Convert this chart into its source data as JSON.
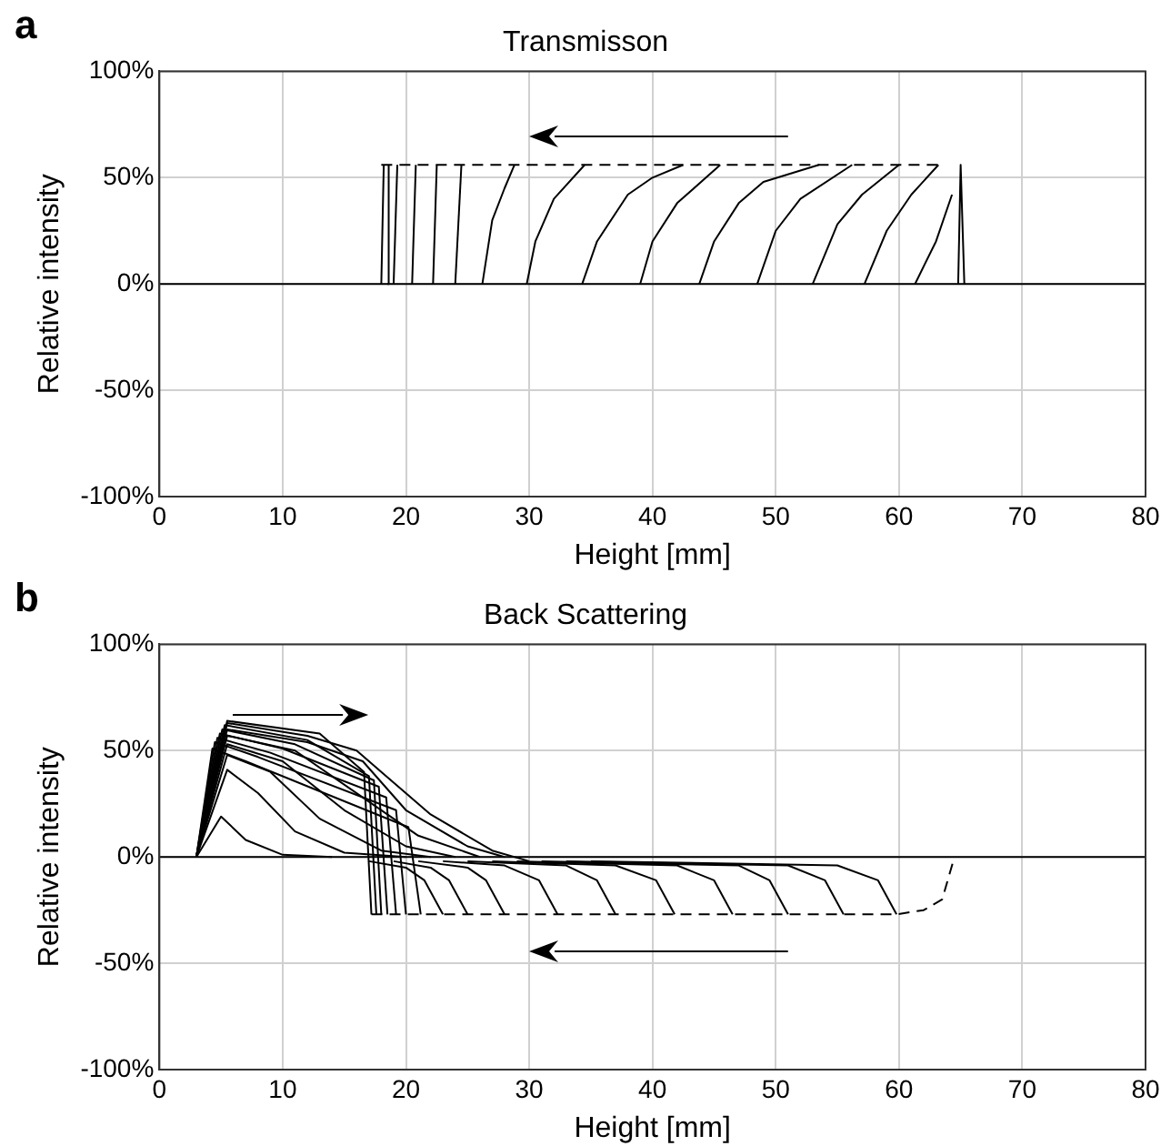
{
  "chart_data": [
    {
      "type": "line",
      "title": "Transmisson",
      "xlabel": "Height [mm]",
      "ylabel": "Relative intensity",
      "annotations": [
        "a"
      ],
      "xlim": [
        0,
        80
      ],
      "xticks": [
        0,
        10,
        20,
        30,
        40,
        50,
        60,
        70,
        80
      ],
      "ylim": [
        -100,
        100
      ],
      "yticks": [
        {
          "value": -100,
          "label": "-100%"
        },
        {
          "value": -50,
          "label": "-50%"
        },
        {
          "value": 0,
          "label": "0%"
        },
        {
          "value": 50,
          "label": "50%"
        },
        {
          "value": 100,
          "label": "100%"
        }
      ],
      "grid": true,
      "legend": false,
      "marker": "none",
      "series": [
        {
          "x": [
            0,
            80
          ],
          "values": [
            0,
            0
          ],
          "color": "#000000"
        },
        {
          "x": [
            18.0,
            18.2
          ],
          "values": [
            0,
            56
          ],
          "color": "#000000"
        },
        {
          "x": [
            18.5,
            18.6
          ],
          "values": [
            0,
            56
          ],
          "color": "#000000"
        },
        {
          "x": [
            19.0,
            19.3
          ],
          "values": [
            0,
            56
          ],
          "color": "#000000"
        },
        {
          "x": [
            20.5,
            20.8
          ],
          "values": [
            0,
            56
          ],
          "color": "#000000"
        },
        {
          "x": [
            22.2,
            22.5
          ],
          "values": [
            0,
            56
          ],
          "color": "#000000"
        },
        {
          "x": [
            24.0,
            24.5
          ],
          "values": [
            0,
            56
          ],
          "color": "#000000"
        },
        {
          "x": [
            26.2,
            27.0,
            28.0,
            28.8
          ],
          "values": [
            0,
            30,
            45,
            56
          ],
          "color": "#000000"
        },
        {
          "x": [
            29.8,
            30.5,
            32.0,
            34.5
          ],
          "values": [
            0,
            20,
            40,
            56
          ],
          "color": "#000000"
        },
        {
          "x": [
            34.3,
            35.5,
            38.0,
            40.0,
            42.5
          ],
          "values": [
            0,
            20,
            42,
            50,
            56
          ],
          "color": "#000000"
        },
        {
          "x": [
            39.0,
            40.0,
            42.0,
            45.5
          ],
          "values": [
            0,
            20,
            38,
            56
          ],
          "color": "#000000"
        },
        {
          "x": [
            43.8,
            45.0,
            47.0,
            49.0,
            53.5
          ],
          "values": [
            0,
            20,
            38,
            48,
            56
          ],
          "color": "#000000"
        },
        {
          "x": [
            48.5,
            50.0,
            52.0,
            56.2
          ],
          "values": [
            0,
            25,
            40,
            56
          ],
          "color": "#000000"
        },
        {
          "x": [
            53.0,
            55.0,
            57.0,
            60.0
          ],
          "values": [
            0,
            28,
            42,
            56
          ],
          "color": "#000000"
        },
        {
          "x": [
            57.2,
            59.0,
            61.0,
            63.2
          ],
          "values": [
            0,
            25,
            42,
            56
          ],
          "color": "#000000"
        },
        {
          "x": [
            61.3,
            63.0,
            64.3
          ],
          "values": [
            0,
            20,
            42
          ],
          "color": "#000000"
        },
        {
          "x": [
            64.8,
            65.0,
            65.3
          ],
          "values": [
            0,
            56,
            0
          ],
          "color": "#000000"
        },
        {
          "x": [
            18.0,
            63.5
          ],
          "values": [
            56,
            56
          ],
          "color": "#000000",
          "line_style": "dashed"
        }
      ]
    },
    {
      "type": "line",
      "title": "Back Scattering",
      "xlabel": "Height [mm]",
      "ylabel": "Relative intensity",
      "annotations": [
        "b"
      ],
      "xlim": [
        0,
        80
      ],
      "xticks": [
        0,
        10,
        20,
        30,
        40,
        50,
        60,
        70,
        80
      ],
      "ylim": [
        -100,
        100
      ],
      "yticks": [
        {
          "value": -100,
          "label": "-100%"
        },
        {
          "value": -50,
          "label": "-50%"
        },
        {
          "value": 0,
          "label": "0%"
        },
        {
          "value": 50,
          "label": "50%"
        },
        {
          "value": 100,
          "label": "100%"
        }
      ],
      "grid": true,
      "legend": false,
      "marker": "none",
      "series": [
        {
          "x": [
            0,
            80
          ],
          "values": [
            0,
            0
          ],
          "color": "#000000"
        },
        {
          "x": [
            3,
            5,
            7,
            10,
            14
          ],
          "values": [
            0,
            19,
            8,
            1,
            0
          ],
          "color": "#000000"
        },
        {
          "x": [
            3,
            5.5,
            8,
            11,
            15,
            20
          ],
          "values": [
            0,
            41,
            30,
            12,
            2,
            0
          ],
          "color": "#000000"
        },
        {
          "x": [
            3,
            5.5,
            9,
            13,
            18,
            22
          ],
          "values": [
            0,
            48,
            40,
            18,
            3,
            0
          ],
          "color": "#000000"
        },
        {
          "x": [
            3,
            5.5,
            10,
            15,
            20,
            24
          ],
          "values": [
            0,
            53,
            45,
            22,
            5,
            0
          ],
          "color": "#000000"
        },
        {
          "x": [
            3,
            5.5,
            11,
            16,
            21,
            26
          ],
          "values": [
            0,
            57,
            50,
            30,
            10,
            0
          ],
          "color": "#000000"
        },
        {
          "x": [
            3,
            5.5,
            12,
            16.5,
            20,
            25,
            28
          ],
          "values": [
            0,
            60,
            54,
            45,
            22,
            5,
            0
          ],
          "color": "#000000"
        },
        {
          "x": [
            3,
            5.5,
            12,
            16,
            18,
            22,
            27,
            30
          ],
          "values": [
            0,
            63,
            57,
            50,
            40,
            20,
            3,
            -2
          ],
          "color": "#000000"
        },
        {
          "x": [
            3,
            5.5,
            13,
            16.6,
            17.2
          ],
          "values": [
            0,
            64,
            58,
            40,
            -27
          ],
          "color": "#000000"
        },
        {
          "x": [
            3,
            5.3,
            12,
            17.0,
            17.6
          ],
          "values": [
            0,
            62,
            55,
            38,
            -27
          ],
          "color": "#000000"
        },
        {
          "x": [
            3,
            5.1,
            11,
            17.4,
            18.0
          ],
          "values": [
            0,
            60,
            53,
            36,
            -27
          ],
          "color": "#000000"
        },
        {
          "x": [
            3,
            4.9,
            10,
            17.8,
            18.5
          ],
          "values": [
            0,
            58,
            51,
            33,
            -27
          ],
          "color": "#000000"
        },
        {
          "x": [
            3,
            4.7,
            9,
            18.4,
            19.2
          ],
          "values": [
            0,
            56,
            49,
            28,
            -27
          ],
          "color": "#000000"
        },
        {
          "x": [
            3,
            4.5,
            8,
            19.2,
            20.0
          ],
          "values": [
            0,
            54,
            47,
            22,
            -27
          ],
          "color": "#000000"
        },
        {
          "x": [
            3,
            4.3,
            7,
            20.2,
            21.2
          ],
          "values": [
            0,
            51,
            45,
            14,
            -27
          ],
          "color": "#000000"
        },
        {
          "x": [
            17,
            20,
            21.5,
            23.0
          ],
          "values": [
            -2,
            -5,
            -11,
            -27
          ],
          "color": "#000000"
        },
        {
          "x": [
            19,
            22,
            23.5,
            25.0
          ],
          "values": [
            -2,
            -5,
            -11,
            -27
          ],
          "color": "#000000"
        },
        {
          "x": [
            21,
            25,
            26.5,
            28.0
          ],
          "values": [
            -2,
            -5,
            -11,
            -27
          ],
          "color": "#000000"
        },
        {
          "x": [
            23,
            28,
            30.8,
            32.3
          ],
          "values": [
            -2,
            -4,
            -11,
            -27
          ],
          "color": "#000000"
        },
        {
          "x": [
            25,
            33,
            35.5,
            37.0
          ],
          "values": [
            -2,
            -4,
            -11,
            -27
          ],
          "color": "#000000"
        },
        {
          "x": [
            27,
            37,
            40.3,
            41.8
          ],
          "values": [
            -2,
            -4,
            -11,
            -27
          ],
          "color": "#000000"
        },
        {
          "x": [
            29,
            42,
            45.0,
            46.5
          ],
          "values": [
            -2,
            -4,
            -11,
            -27
          ],
          "color": "#000000"
        },
        {
          "x": [
            31,
            47,
            49.5,
            51.0
          ],
          "values": [
            -2,
            -4,
            -11,
            -27
          ],
          "color": "#000000"
        },
        {
          "x": [
            33,
            51,
            54.0,
            55.5
          ],
          "values": [
            -2,
            -4,
            -11,
            -27
          ],
          "color": "#000000"
        },
        {
          "x": [
            35,
            55,
            58.3,
            59.8
          ],
          "values": [
            -2,
            -4,
            -11,
            -27
          ],
          "color": "#000000"
        },
        {
          "x": [
            17.2,
            59.8,
            62.0,
            63.5,
            64.5
          ],
          "values": [
            -27,
            -27,
            -25,
            -20,
            0
          ],
          "color": "#000000",
          "line_style": "dashed"
        }
      ]
    }
  ]
}
